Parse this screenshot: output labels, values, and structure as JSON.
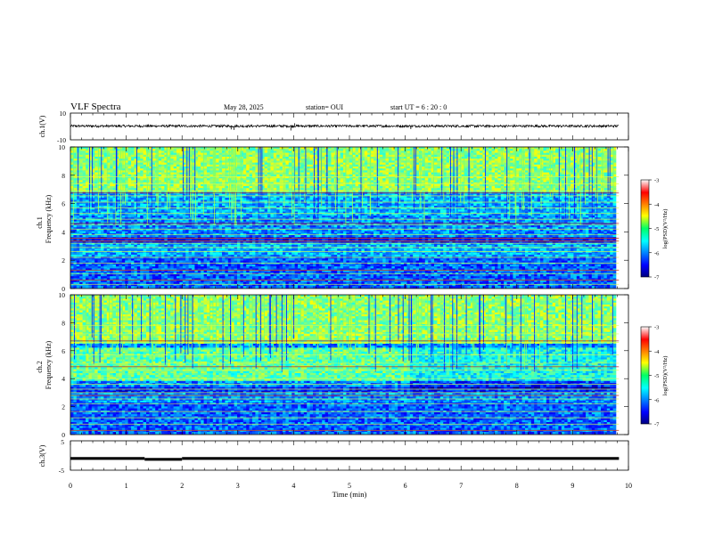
{
  "header": {
    "title": "VLF Spectra",
    "date": "May 28, 2025",
    "station": "station= OUI",
    "start": "start  UT  =   6  : 20 : 0"
  },
  "chart_data": [
    {
      "type": "line",
      "panel": "ch1-waveform",
      "ylabel": "ch.1(V)",
      "ylim": [
        -10,
        10
      ],
      "tick_labels": [
        "10",
        "-10"
      ],
      "x": [
        0,
        9.83
      ],
      "baseline": 0.3,
      "noise_amplitude": 0.9,
      "spikes": [
        {
          "x": 2.88,
          "y": -2.2
        },
        {
          "x": 2.93,
          "y": -2.6
        },
        {
          "x": 3.95,
          "y": -3.0
        },
        {
          "x": 4.02,
          "y": 2.4
        },
        {
          "x": 6.1,
          "y": -2.0
        }
      ],
      "color": "#000000"
    },
    {
      "type": "heatmap",
      "panel": "ch1-spectrogram",
      "ylabel": "ch.1",
      "ylabel2": "Frequency  (kHz)",
      "ylim": [
        0,
        10
      ],
      "xlim": [
        0,
        10
      ],
      "data_end_min": 9.83,
      "y_tick_labels": [
        "0",
        "2",
        "4",
        "6",
        "8",
        "10"
      ],
      "colorbar": {
        "label": "log(PSD)(V²/Hz)",
        "ticks": [
          "-3",
          "-4",
          "-5",
          "-6",
          "-7"
        ],
        "range": [
          -7,
          -3
        ]
      },
      "lines_khz": [
        0.3,
        0.6,
        1.05,
        1.3,
        1.8,
        2.2,
        2.6,
        2.9,
        3.2,
        3.35,
        3.55,
        3.8,
        4.2,
        4.5,
        4.9,
        5.3,
        5.7,
        6.1,
        6.55,
        6.9,
        7.4,
        7.9
      ],
      "red_lines_khz": [
        3.35,
        3.55,
        1.3,
        4.6,
        6.75,
        0.6
      ]
    },
    {
      "type": "heatmap",
      "panel": "ch2-spectrogram",
      "ylabel": "ch.2",
      "ylabel2": "Frequency  (kHz)",
      "ylim": [
        0,
        10
      ],
      "xlim": [
        0,
        10
      ],
      "data_end_min": 9.83,
      "y_tick_labels": [
        "0",
        "2",
        "4",
        "6",
        "8",
        "10"
      ],
      "colorbar": {
        "label": "log(PSD)(V²/Hz)",
        "ticks": [
          "-3",
          "-4",
          "-5",
          "-6",
          "-7"
        ],
        "range": [
          -7,
          -3
        ]
      },
      "band_khz": [
        3.8,
        6.2
      ],
      "lines_khz": [
        0.3,
        0.75,
        1.2,
        1.65,
        2.2,
        2.55,
        2.8,
        3.0,
        3.25,
        3.6,
        4.0,
        4.6,
        5.1,
        5.7,
        6.6,
        7.2,
        7.8
      ],
      "red_lines_khz": [
        2.8,
        4.85,
        6.7,
        0.3
      ]
    },
    {
      "type": "line",
      "panel": "ch3-waveform",
      "ylabel": "ch.3(V)",
      "ylim": [
        -5,
        5
      ],
      "tick_labels": [
        "5",
        "-5"
      ],
      "x": [
        0,
        9.83
      ],
      "segments": [
        {
          "x0": 0,
          "x1": 1.33,
          "y": -1.0
        },
        {
          "x0": 1.33,
          "x1": 2.0,
          "y": -1.3
        },
        {
          "x0": 2.0,
          "x1": 9.83,
          "y": -1.0
        }
      ],
      "color": "#000000"
    }
  ],
  "x_axis": {
    "label": "Time  (min)",
    "ticks": [
      "0",
      "1",
      "2",
      "3",
      "4",
      "5",
      "6",
      "7",
      "8",
      "9",
      "10"
    ],
    "range": [
      0,
      10
    ]
  }
}
